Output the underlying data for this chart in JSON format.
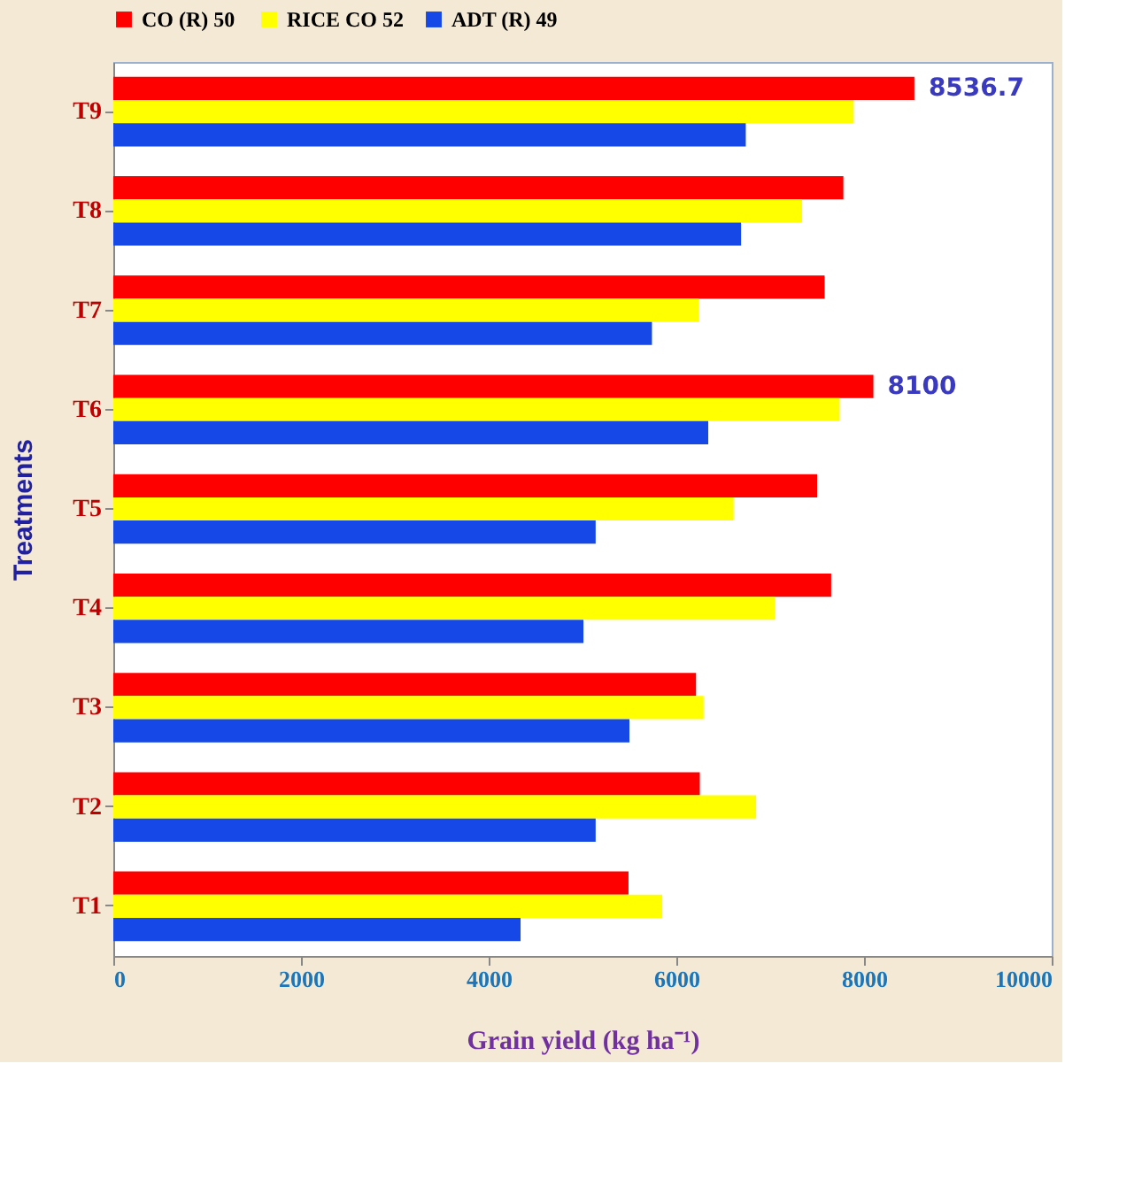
{
  "chart_data": {
    "type": "bar",
    "orientation": "horizontal",
    "xlabel": "Grain yield (kg ha⁻¹)",
    "ylabel": "Treatments",
    "categories": [
      "T9",
      "T8",
      "T7",
      "T6",
      "T5",
      "T4",
      "T3",
      "T2",
      "T1"
    ],
    "series": [
      {
        "name": "CO (R)  50",
        "color": "#ff0000",
        "values": [
          8536.7,
          7780,
          7580,
          8100,
          7500,
          7650,
          6210,
          6250,
          5490
        ],
        "value_labels": [
          "8536.7",
          null,
          null,
          "8100",
          null,
          null,
          null,
          null,
          null
        ]
      },
      {
        "name": "RICE CO 52",
        "color": "#ffff00",
        "values": [
          7890,
          7340,
          6240,
          7740,
          6610,
          7050,
          6290,
          6850,
          5850
        ]
      },
      {
        "name": "ADT (R) 49",
        "color": "#1548e6",
        "values": [
          6740,
          6690,
          5740,
          6340,
          5140,
          5010,
          5500,
          5140,
          4340
        ]
      }
    ],
    "xlim": [
      0,
      10000
    ],
    "xticks": [
      0,
      2000,
      4000,
      6000,
      8000,
      10000
    ],
    "grid": false,
    "legend": "top"
  }
}
